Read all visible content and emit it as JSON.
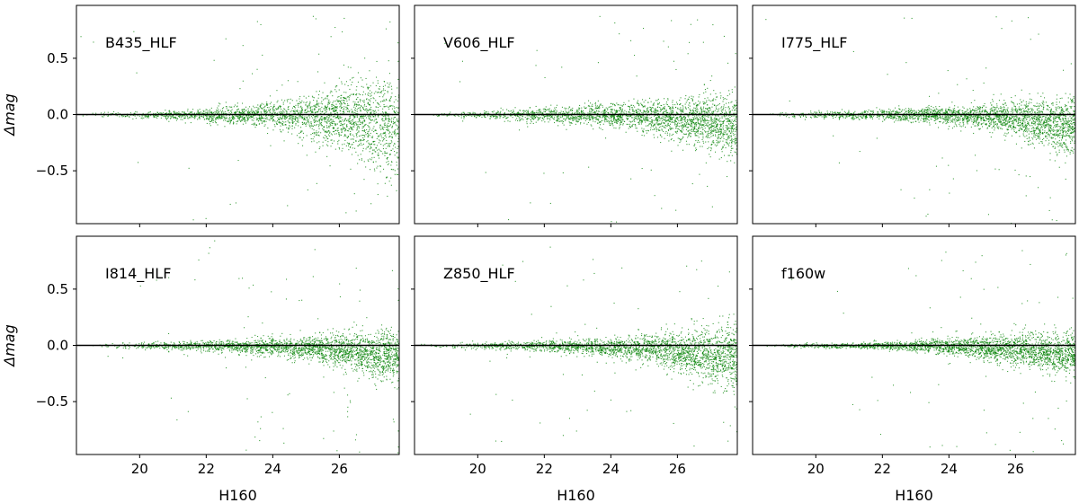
{
  "figure": {
    "xlabel": "H160",
    "ylabel": "Δmag"
  },
  "chart_data": [
    {
      "type": "scatter",
      "title": "B435_HLF",
      "xlabel": "",
      "ylabel": "Δmag",
      "xlim": [
        18.1,
        27.8
      ],
      "ylim": [
        -0.97,
        0.97
      ],
      "xticks": [
        20,
        22,
        24,
        26
      ],
      "yticks": [
        -0.5,
        0.0,
        0.5
      ],
      "color": "#008000",
      "zero_line": 0.0,
      "series": [
        {
          "x": [
            18.5,
            19.0,
            19.5,
            20.0,
            20.5,
            21.0,
            21.5,
            22.0,
            22.5,
            23.0,
            23.5,
            24.0,
            24.5,
            25.0,
            25.5,
            26.0,
            26.5,
            27.0,
            27.5
          ],
          "y": [
            0.0,
            0.0,
            0.0,
            0.0,
            0.0,
            0.0,
            0.0,
            0.0,
            0.0,
            0.0,
            0.0,
            0.0,
            -0.01,
            -0.01,
            -0.02,
            -0.03,
            -0.05,
            -0.07,
            -0.1
          ],
          "scatter_width": [
            0.02,
            0.02,
            0.02,
            0.03,
            0.03,
            0.04,
            0.05,
            0.06,
            0.07,
            0.08,
            0.1,
            0.12,
            0.15,
            0.18,
            0.22,
            0.27,
            0.33,
            0.4,
            0.45
          ]
        }
      ]
    },
    {
      "type": "scatter",
      "title": "V606_HLF",
      "xlabel": "",
      "ylabel": "",
      "xlim": [
        18.1,
        27.8
      ],
      "ylim": [
        -0.97,
        0.97
      ],
      "xticks": [
        20,
        22,
        24,
        26
      ],
      "yticks": [
        -0.5,
        0.0,
        0.5
      ],
      "color": "#008000",
      "zero_line": 0.0,
      "series": [
        {
          "x": [
            18.5,
            19.0,
            19.5,
            20.0,
            20.5,
            21.0,
            21.5,
            22.0,
            22.5,
            23.0,
            23.5,
            24.0,
            24.5,
            25.0,
            25.5,
            26.0,
            26.5,
            27.0,
            27.5
          ],
          "y": [
            0.0,
            0.0,
            0.0,
            0.0,
            0.0,
            0.0,
            0.0,
            0.0,
            0.0,
            0.0,
            0.0,
            0.0,
            -0.01,
            -0.01,
            -0.02,
            -0.03,
            -0.05,
            -0.08,
            -0.1
          ],
          "scatter_width": [
            0.02,
            0.02,
            0.03,
            0.03,
            0.04,
            0.05,
            0.06,
            0.06,
            0.07,
            0.08,
            0.09,
            0.1,
            0.11,
            0.13,
            0.15,
            0.18,
            0.21,
            0.24,
            0.26
          ]
        }
      ]
    },
    {
      "type": "scatter",
      "title": "I775_HLF",
      "xlabel": "",
      "ylabel": "",
      "xlim": [
        18.1,
        27.8
      ],
      "ylim": [
        -0.97,
        0.97
      ],
      "xticks": [
        20,
        22,
        24,
        26
      ],
      "yticks": [
        -0.5,
        0.0,
        0.5
      ],
      "color": "#008000",
      "zero_line": 0.0,
      "series": [
        {
          "x": [
            18.5,
            19.0,
            19.5,
            20.0,
            20.5,
            21.0,
            21.5,
            22.0,
            22.5,
            23.0,
            23.5,
            24.0,
            24.5,
            25.0,
            25.5,
            26.0,
            26.5,
            27.0,
            27.5
          ],
          "y": [
            0.0,
            0.0,
            0.0,
            0.0,
            0.0,
            0.0,
            0.0,
            0.0,
            0.0,
            0.0,
            0.0,
            0.0,
            -0.01,
            -0.01,
            -0.02,
            -0.03,
            -0.05,
            -0.07,
            -0.09
          ],
          "scatter_width": [
            0.02,
            0.02,
            0.03,
            0.03,
            0.03,
            0.04,
            0.04,
            0.05,
            0.06,
            0.06,
            0.07,
            0.08,
            0.09,
            0.1,
            0.12,
            0.15,
            0.18,
            0.21,
            0.23
          ]
        }
      ]
    },
    {
      "type": "scatter",
      "title": "I814_HLF",
      "xlabel": "H160",
      "ylabel": "Δmag",
      "xlim": [
        18.1,
        27.8
      ],
      "ylim": [
        -0.97,
        0.97
      ],
      "xticks": [
        20,
        22,
        24,
        26
      ],
      "yticks": [
        -0.5,
        0.0,
        0.5
      ],
      "color": "#008000",
      "zero_line": 0.0,
      "series": [
        {
          "x": [
            18.5,
            19.0,
            19.5,
            20.0,
            20.5,
            21.0,
            21.5,
            22.0,
            22.5,
            23.0,
            23.5,
            24.0,
            24.5,
            25.0,
            25.5,
            26.0,
            26.5,
            27.0,
            27.5
          ],
          "y": [
            0.0,
            0.0,
            0.0,
            0.0,
            0.0,
            0.0,
            0.0,
            0.0,
            0.0,
            -0.01,
            -0.01,
            -0.01,
            -0.02,
            -0.02,
            -0.03,
            -0.04,
            -0.06,
            -0.08,
            -0.1
          ],
          "scatter_width": [
            0.02,
            0.02,
            0.03,
            0.03,
            0.03,
            0.04,
            0.04,
            0.05,
            0.05,
            0.06,
            0.07,
            0.08,
            0.09,
            0.1,
            0.12,
            0.14,
            0.17,
            0.2,
            0.22
          ]
        }
      ]
    },
    {
      "type": "scatter",
      "title": "Z850_HLF",
      "xlabel": "H160",
      "ylabel": "",
      "xlim": [
        18.1,
        27.8
      ],
      "ylim": [
        -0.97,
        0.97
      ],
      "xticks": [
        20,
        22,
        24,
        26
      ],
      "yticks": [
        -0.5,
        0.0,
        0.5
      ],
      "color": "#008000",
      "zero_line": 0.0,
      "series": [
        {
          "x": [
            18.5,
            19.0,
            19.5,
            20.0,
            20.5,
            21.0,
            21.5,
            22.0,
            22.5,
            23.0,
            23.5,
            24.0,
            24.5,
            25.0,
            25.5,
            26.0,
            26.5,
            27.0,
            27.5
          ],
          "y": [
            0.0,
            0.0,
            0.0,
            0.0,
            0.0,
            0.0,
            0.0,
            0.0,
            0.0,
            -0.01,
            -0.01,
            -0.02,
            -0.02,
            -0.03,
            -0.04,
            -0.05,
            -0.07,
            -0.09,
            -0.11
          ],
          "scatter_width": [
            0.02,
            0.02,
            0.03,
            0.03,
            0.03,
            0.04,
            0.04,
            0.05,
            0.06,
            0.06,
            0.07,
            0.08,
            0.1,
            0.12,
            0.14,
            0.17,
            0.21,
            0.26,
            0.29
          ]
        }
      ]
    },
    {
      "type": "scatter",
      "title": "f160w",
      "xlabel": "H160",
      "ylabel": "",
      "xlim": [
        18.1,
        27.8
      ],
      "ylim": [
        -0.97,
        0.97
      ],
      "xticks": [
        20,
        22,
        24,
        26
      ],
      "yticks": [
        -0.5,
        0.0,
        0.5
      ],
      "color": "#008000",
      "zero_line": 0.0,
      "series": [
        {
          "x": [
            18.5,
            19.0,
            19.5,
            20.0,
            20.5,
            21.0,
            21.5,
            22.0,
            22.5,
            23.0,
            23.5,
            24.0,
            24.5,
            25.0,
            25.5,
            26.0,
            26.5,
            27.0,
            27.5
          ],
          "y": [
            0.0,
            0.0,
            0.0,
            0.0,
            0.0,
            0.0,
            0.0,
            0.0,
            0.0,
            0.0,
            0.0,
            -0.01,
            -0.01,
            -0.02,
            -0.03,
            -0.04,
            -0.05,
            -0.06,
            -0.07
          ],
          "scatter_width": [
            0.01,
            0.01,
            0.02,
            0.02,
            0.02,
            0.02,
            0.03,
            0.03,
            0.04,
            0.05,
            0.06,
            0.07,
            0.08,
            0.1,
            0.12,
            0.14,
            0.16,
            0.17,
            0.18
          ]
        }
      ]
    }
  ]
}
